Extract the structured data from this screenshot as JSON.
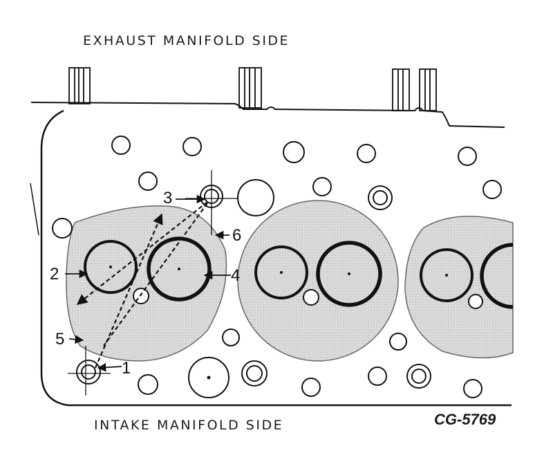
{
  "labels": {
    "top_side": "EXHAUST MANIFOLD SIDE",
    "bottom_side": "INTAKE MANIFOLD SIDE",
    "figure_code": "CG-5769"
  },
  "callouts": [
    "1",
    "2",
    "3",
    "4",
    "5",
    "6"
  ],
  "colors": {
    "ink": "#111111",
    "chamber_fill": "#d6d6d6",
    "background": "#ffffff"
  }
}
